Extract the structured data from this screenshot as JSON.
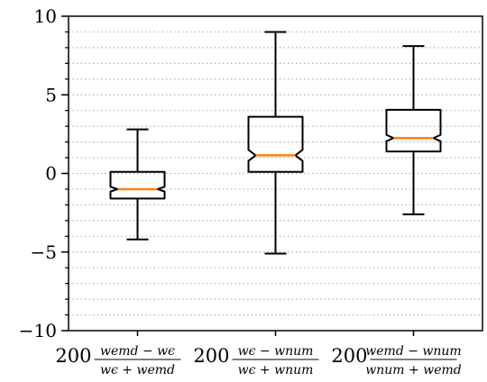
{
  "chart_data": {
    "type": "boxplot",
    "title": "",
    "xlabel": "",
    "ylabel": "",
    "ylim": [
      -10,
      10
    ],
    "yticks": [
      10,
      5,
      0,
      -5,
      -10
    ],
    "ytick_labels": [
      "10",
      "5",
      "0",
      "−5",
      "−10"
    ],
    "minor_ytick_step": 1,
    "grid": "horizontal dotted at minor ticks",
    "notched": true,
    "categories": [
      {
        "prefix": "200",
        "num_a": "emd",
        "num_b": "ϵ",
        "den_a": "ϵ",
        "den_b": "emd"
      },
      {
        "prefix": "200",
        "num_a": "ϵ",
        "num_b": "num",
        "den_a": "ϵ",
        "den_b": "num"
      },
      {
        "prefix": "200",
        "num_a": "emd",
        "num_b": "num",
        "den_a": "num",
        "den_b": "emd"
      }
    ],
    "boxes": [
      {
        "whislo": -4.2,
        "q1": -1.6,
        "med": -1.0,
        "q3": 0.1,
        "whishi": 2.8,
        "notch": [
          -1.15,
          -0.85
        ]
      },
      {
        "whislo": -5.1,
        "q1": 0.1,
        "med": 1.15,
        "q3": 3.6,
        "whishi": 9.0,
        "notch": [
          0.8,
          1.5
        ]
      },
      {
        "whislo": -2.6,
        "q1": 1.4,
        "med": 2.25,
        "q3": 4.05,
        "whishi": 8.1,
        "notch": [
          2.05,
          2.45
        ]
      }
    ],
    "colors": {
      "box": "#000000",
      "median": "#ff7f0e",
      "grid": "#b0b0b0"
    }
  }
}
